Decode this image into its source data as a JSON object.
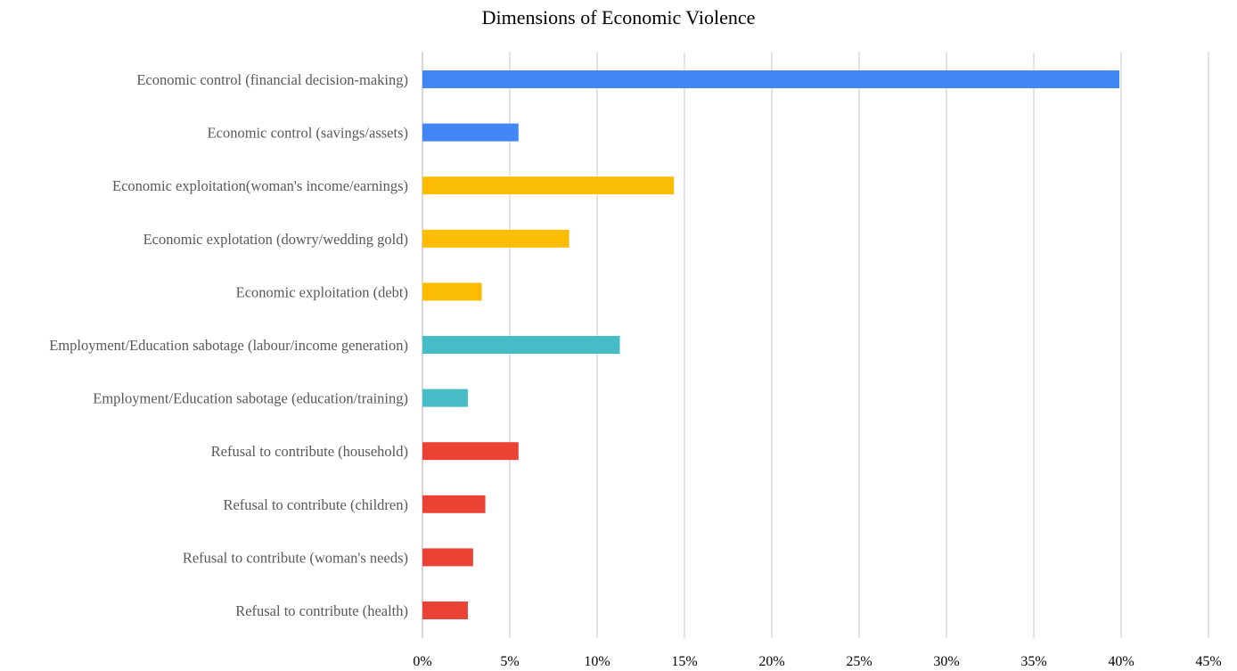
{
  "chart_data": {
    "type": "bar",
    "orientation": "horizontal",
    "title": "Dimensions of Economic Violence",
    "xlabel": "",
    "ylabel": "",
    "xlim": [
      0,
      45
    ],
    "x_ticks": [
      "0%",
      "5%",
      "10%",
      "15%",
      "20%",
      "25%",
      "30%",
      "35%",
      "40%",
      "45%"
    ],
    "grid": "vertical",
    "legend": "none",
    "categories": [
      "Economic control (financial decision-making)",
      "Economic control (savings/assets)",
      "Economic exploitation(woman's income/earnings)",
      "Economic explotation (dowry/wedding gold)",
      "Economic exploitation (debt)",
      "Employment/Education sabotage (labour/income generation)",
      "Employment/Education sabotage (education/training)",
      "Refusal to contribute (household)",
      "Refusal to contribute (children)",
      "Refusal to contribute (woman's needs)",
      "Refusal to contribute (health)"
    ],
    "values": [
      39.9,
      5.5,
      14.4,
      8.4,
      3.4,
      11.3,
      2.6,
      5.5,
      3.6,
      2.9,
      2.6
    ],
    "colors": [
      "#4285F4",
      "#4285F4",
      "#FBBC04",
      "#FBBC04",
      "#FBBC04",
      "#46BDC6",
      "#46BDC6",
      "#EA4335",
      "#EA4335",
      "#EA4335",
      "#EA4335"
    ]
  },
  "style": {
    "grid_color": "#d3d3d3",
    "axis_color": "#bfbfbf",
    "label_color": "#595959",
    "tick_color": "#000000"
  }
}
